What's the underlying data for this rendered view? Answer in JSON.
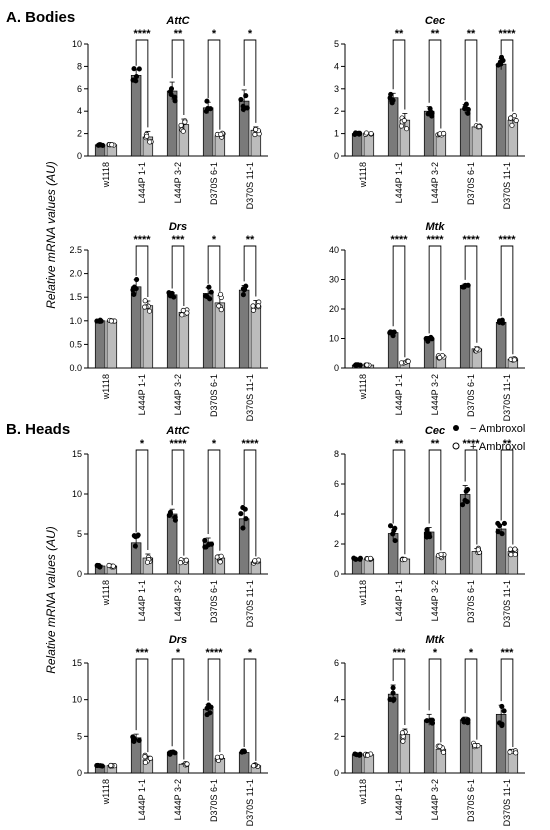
{
  "sections": {
    "bodies": "A. Bodies",
    "heads": "B. Heads"
  },
  "ylabel": "Relative mRNA values (AU)",
  "legend": {
    "minus": "− Ambroxol",
    "plus": "+ Ambroxol",
    "placement": "right, between panels A and B"
  },
  "colors": {
    "bar_minus": "#7a7a7a",
    "bar_plus": "#bcbcbc",
    "dot_minus": "#000000",
    "dot_plus": "#ffffff"
  },
  "chart_data": [
    {
      "type": "bar",
      "section": "A. Bodies",
      "title": "AttC",
      "categories": [
        "w1118",
        "L444P 1-1",
        "L444P 3-2",
        "D370S 6-1",
        "D370S 11-1"
      ],
      "series": [
        {
          "name": "− Ambroxol",
          "values": [
            1.0,
            7.2,
            5.8,
            4.3,
            4.9
          ],
          "errors": [
            0.05,
            0.5,
            0.8,
            0.5,
            1.0
          ]
        },
        {
          "name": "+ Ambroxol",
          "values": [
            1.0,
            1.7,
            2.8,
            1.8,
            2.3
          ],
          "errors": [
            0.05,
            0.5,
            0.5,
            0.2,
            0.3
          ]
        }
      ],
      "ylim": [
        0,
        10
      ],
      "yticks": [
        0,
        2,
        4,
        6,
        8,
        10
      ],
      "significance": [
        "****",
        "**",
        "*",
        "*"
      ]
    },
    {
      "type": "bar",
      "section": "A. Bodies",
      "title": "Cec",
      "categories": [
        "w1118",
        "L444P 1-1",
        "L444P 3-2",
        "D370S 6-1",
        "D370S 11-1"
      ],
      "series": [
        {
          "name": "− Ambroxol",
          "values": [
            1.0,
            2.6,
            2.0,
            2.1,
            4.1
          ],
          "errors": [
            0.03,
            0.2,
            0.2,
            0.2,
            0.25
          ]
        },
        {
          "name": "+ Ambroxol",
          "values": [
            1.0,
            1.6,
            1.0,
            1.3,
            1.6
          ],
          "errors": [
            0.03,
            0.3,
            0.05,
            0.05,
            0.2
          ]
        }
      ],
      "ylim": [
        0,
        5
      ],
      "yticks": [
        0,
        1,
        2,
        3,
        4,
        5
      ],
      "significance": [
        "**",
        "**",
        "**",
        "****"
      ]
    },
    {
      "type": "bar",
      "section": "A. Bodies",
      "title": "Drs",
      "categories": [
        "w1118",
        "L444P 1-1",
        "L444P 3-2",
        "D370S 6-1",
        "D370S 11-1"
      ],
      "series": [
        {
          "name": "− Ambroxol",
          "values": [
            1.0,
            1.72,
            1.55,
            1.58,
            1.65
          ],
          "errors": [
            0.01,
            0.15,
            0.05,
            0.12,
            0.1
          ]
        },
        {
          "name": "+ Ambroxol",
          "values": [
            1.0,
            1.32,
            1.18,
            1.38,
            1.33
          ],
          "errors": [
            0.01,
            0.1,
            0.05,
            0.15,
            0.1
          ]
        }
      ],
      "ylim": [
        0,
        2.5
      ],
      "yticks": [
        0.0,
        0.5,
        1.0,
        1.5,
        2.0,
        2.5
      ],
      "significance": [
        "****",
        "***",
        "*",
        "**"
      ]
    },
    {
      "type": "bar",
      "section": "A. Bodies",
      "title": "Mtk",
      "categories": [
        "w1118",
        "L444P 1-1",
        "L444P 3-2",
        "D370S 6-1",
        "D370S 11-1"
      ],
      "series": [
        {
          "name": "− Ambroxol",
          "values": [
            1.0,
            12.0,
            9.8,
            28.0,
            15.5
          ],
          "errors": [
            0.1,
            0.8,
            0.6,
            0.5,
            0.7
          ]
        },
        {
          "name": "+ Ambroxol",
          "values": [
            1.0,
            2.0,
            4.0,
            6.5,
            3.0
          ],
          "errors": [
            0.1,
            0.3,
            0.5,
            0.7,
            0.3
          ]
        }
      ],
      "ylim": [
        0,
        40
      ],
      "yticks": [
        0,
        10,
        20,
        30,
        40
      ],
      "significance": [
        "****",
        "****",
        "****",
        "****"
      ]
    },
    {
      "type": "bar",
      "section": "B. Heads",
      "title": "AttC",
      "categories": [
        "w1118",
        "L444P 1-1",
        "L444P 3-2",
        "D370S 6-1",
        "D370S 11-1"
      ],
      "series": [
        {
          "name": "− Ambroxol",
          "values": [
            1.0,
            3.9,
            7.5,
            4.0,
            6.9
          ],
          "errors": [
            0.1,
            0.8,
            0.6,
            0.5,
            1.2
          ]
        },
        {
          "name": "+ Ambroxol",
          "values": [
            1.0,
            2.0,
            1.6,
            2.0,
            1.5
          ],
          "errors": [
            0.1,
            0.5,
            0.2,
            0.4,
            0.2
          ]
        }
      ],
      "ylim": [
        0,
        15
      ],
      "yticks": [
        0,
        5,
        10,
        15
      ],
      "significance": [
        "*",
        "****",
        "*",
        "****"
      ]
    },
    {
      "type": "bar",
      "section": "B. Heads",
      "title": "Cec",
      "categories": [
        "w1118",
        "L444P 1-1",
        "L444P 3-2",
        "D370S 6-1",
        "D370S 11-1"
      ],
      "series": [
        {
          "name": "− Ambroxol",
          "values": [
            1.0,
            2.7,
            2.8,
            5.3,
            3.0
          ],
          "errors": [
            0.05,
            0.4,
            0.3,
            0.6,
            0.3
          ]
        },
        {
          "name": "+ Ambroxol",
          "values": [
            1.0,
            1.0,
            1.2,
            1.5,
            1.5
          ],
          "errors": [
            0.05,
            0.05,
            0.1,
            0.2,
            0.2
          ]
        }
      ],
      "ylim": [
        0,
        8
      ],
      "yticks": [
        0,
        2,
        4,
        6,
        8
      ],
      "significance": [
        "**",
        "**",
        "****",
        "**"
      ]
    },
    {
      "type": "bar",
      "section": "B. Heads",
      "title": "Drs",
      "categories": [
        "w1118",
        "L444P 1-1",
        "L444P 3-2",
        "D370S 6-1",
        "D370S 11-1"
      ],
      "series": [
        {
          "name": "− Ambroxol",
          "values": [
            1.0,
            4.8,
            2.8,
            8.7,
            2.8
          ],
          "errors": [
            0.05,
            0.5,
            0.3,
            0.6,
            0.2
          ]
        },
        {
          "name": "+ Ambroxol",
          "values": [
            1.0,
            1.8,
            1.2,
            2.0,
            1.0
          ],
          "errors": [
            0.05,
            0.5,
            0.1,
            0.3,
            0.1
          ]
        }
      ],
      "ylim": [
        0,
        15
      ],
      "yticks": [
        0,
        5,
        10,
        15
      ],
      "significance": [
        "***",
        "*",
        "****",
        "*"
      ]
    },
    {
      "type": "bar",
      "section": "B. Heads",
      "title": "Mtk",
      "categories": [
        "w1118",
        "L444P 1-1",
        "L444P 3-2",
        "D370S 6-1",
        "D370S 11-1"
      ],
      "series": [
        {
          "name": "− Ambroxol",
          "values": [
            1.0,
            4.3,
            2.9,
            2.9,
            3.2
          ],
          "errors": [
            0.03,
            0.5,
            0.3,
            0.15,
            0.5
          ]
        },
        {
          "name": "+ Ambroxol",
          "values": [
            1.0,
            2.1,
            1.3,
            1.5,
            1.15
          ],
          "errors": [
            0.03,
            0.3,
            0.15,
            0.1,
            0.05
          ]
        }
      ],
      "ylim": [
        0,
        6
      ],
      "yticks": [
        0,
        2,
        4,
        6
      ],
      "significance": [
        "***",
        "*",
        "*",
        "***"
      ]
    }
  ]
}
